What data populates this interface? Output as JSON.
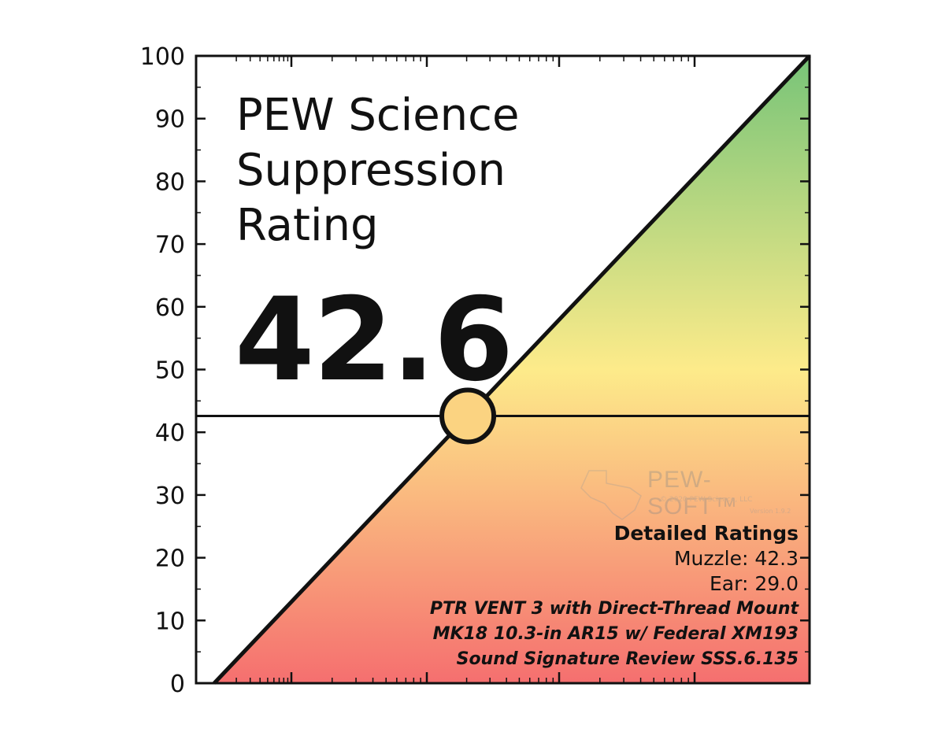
{
  "title_lines": [
    "PEW Science",
    "Suppression",
    "Rating"
  ],
  "rating_value": "42.6",
  "details": {
    "header": "Detailed Ratings",
    "muzzle": "Muzzle: 42.3",
    "ear": "Ear: 29.0",
    "product": "PTR VENT 3 with Direct-Thread Mount",
    "host": "MK18 10.3-in AR15 w/ Federal XM193",
    "review": "Sound Signature Review SSS.6.135"
  },
  "watermark": {
    "brand": "PEW-SOFT™",
    "copyright": "© 2020 PEW Science, LLC",
    "version": "Version 1.9.2"
  },
  "colors": {
    "low": "#f56f6f",
    "mid": "#fdeb8a",
    "high": "#77c478",
    "marker_fill": "#fbd381",
    "axis": "#111111"
  },
  "chart_data": {
    "type": "area",
    "title": "PEW Science Suppression Rating",
    "ylim": [
      0,
      100
    ],
    "y_ticks": [
      "0",
      "10",
      "20",
      "30",
      "40",
      "50",
      "60",
      "70",
      "80",
      "90",
      "100"
    ],
    "diagonal_y_range": [
      0,
      100
    ],
    "rating": 42.6,
    "xlabel": "",
    "ylabel": ""
  }
}
